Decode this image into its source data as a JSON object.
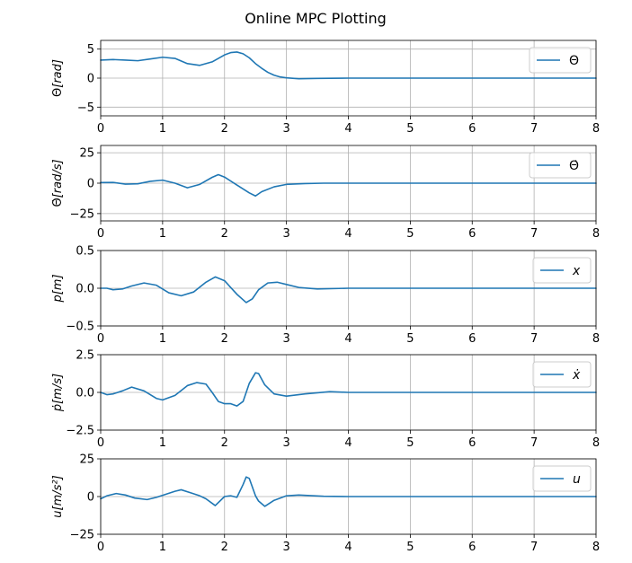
{
  "title": "Online MPC Plotting",
  "colors": {
    "series": "#1f77b4",
    "grid": "#b0b0b0"
  },
  "chart_data": [
    {
      "type": "line",
      "ylabel_prefix": "Θ",
      "ylabel_unit": "rad",
      "legend": "Θ",
      "legend_italic": false,
      "legend_position": "top-right",
      "xlim": [
        0,
        8
      ],
      "ylim": [
        -6.5,
        6.5
      ],
      "xticks": [
        0,
        1,
        2,
        3,
        4,
        5,
        6,
        7,
        8
      ],
      "yticks": [
        -5,
        0,
        5
      ],
      "grid": true,
      "series": [
        {
          "x": [
            0,
            0.2,
            0.4,
            0.6,
            0.8,
            1.0,
            1.2,
            1.4,
            1.6,
            1.8,
            2.0,
            2.1,
            2.2,
            2.3,
            2.4,
            2.5,
            2.6,
            2.7,
            2.8,
            2.9,
            3.0,
            3.2,
            3.5,
            4.0,
            8.0
          ],
          "y": [
            3.1,
            3.2,
            3.1,
            3.0,
            3.3,
            3.6,
            3.4,
            2.5,
            2.2,
            2.8,
            4.0,
            4.4,
            4.5,
            4.2,
            3.5,
            2.5,
            1.7,
            1.0,
            0.5,
            0.2,
            0.05,
            -0.1,
            -0.05,
            0.0,
            0.0
          ]
        }
      ]
    },
    {
      "type": "line",
      "ylabel_prefix": "Θ̇",
      "ylabel_unit": "rad/s",
      "legend": "Θ̇",
      "legend_italic": false,
      "legend_position": "top-right",
      "xlim": [
        0,
        8
      ],
      "ylim": [
        -31,
        31
      ],
      "xticks": [
        0,
        1,
        2,
        3,
        4,
        5,
        6,
        7,
        8
      ],
      "yticks": [
        -25,
        0,
        25
      ],
      "grid": true,
      "series": [
        {
          "x": [
            0,
            0.2,
            0.4,
            0.6,
            0.8,
            1.0,
            1.2,
            1.4,
            1.6,
            1.8,
            1.9,
            2.0,
            2.2,
            2.4,
            2.5,
            2.6,
            2.8,
            3.0,
            3.3,
            3.6,
            4.0,
            8.0
          ],
          "y": [
            0.5,
            0.6,
            -0.8,
            -0.5,
            1.5,
            2.5,
            0.0,
            -3.8,
            -1.0,
            4.8,
            7.0,
            5.0,
            -1.5,
            -8.0,
            -10.5,
            -7.0,
            -3.0,
            -1.0,
            -0.3,
            0.0,
            0.0,
            0.0
          ]
        }
      ]
    },
    {
      "type": "line",
      "ylabel_prefix": "p",
      "ylabel_unit": "m",
      "legend": "x",
      "legend_italic": true,
      "legend_position": "top-right",
      "xlim": [
        0,
        8
      ],
      "ylim": [
        -0.5,
        0.5
      ],
      "xticks": [
        0,
        1,
        2,
        3,
        4,
        5,
        6,
        7,
        8
      ],
      "yticks": [
        -0.5,
        0.0,
        0.5
      ],
      "ytick_labels": [
        "−0.5",
        "0.0",
        "0.5"
      ],
      "grid": true,
      "series": [
        {
          "x": [
            0,
            0.1,
            0.2,
            0.35,
            0.5,
            0.7,
            0.9,
            1.1,
            1.3,
            1.5,
            1.7,
            1.85,
            2.0,
            2.2,
            2.35,
            2.45,
            2.55,
            2.7,
            2.85,
            3.0,
            3.2,
            3.5,
            4.0,
            8.0
          ],
          "y": [
            0.0,
            0.0,
            -0.02,
            -0.01,
            0.03,
            0.07,
            0.04,
            -0.06,
            -0.1,
            -0.05,
            0.08,
            0.15,
            0.1,
            -0.08,
            -0.19,
            -0.14,
            -0.02,
            0.07,
            0.08,
            0.05,
            0.01,
            -0.01,
            0.0,
            0.0
          ]
        }
      ]
    },
    {
      "type": "line",
      "ylabel_prefix": "ṗ",
      "ylabel_unit": "m/s",
      "legend": "ẋ",
      "legend_italic": true,
      "legend_position": "top-right",
      "xlim": [
        0,
        8
      ],
      "ylim": [
        -2.5,
        2.5
      ],
      "xticks": [
        0,
        1,
        2,
        3,
        4,
        5,
        6,
        7,
        8
      ],
      "yticks": [
        -2.5,
        0.0,
        2.5
      ],
      "ytick_labels": [
        "−2.5",
        "0.0",
        "2.5"
      ],
      "grid": true,
      "series": [
        {
          "x": [
            0,
            0.1,
            0.2,
            0.35,
            0.5,
            0.7,
            0.9,
            1.0,
            1.2,
            1.4,
            1.55,
            1.7,
            1.8,
            1.9,
            2.0,
            2.1,
            2.2,
            2.3,
            2.4,
            2.5,
            2.55,
            2.65,
            2.8,
            3.0,
            3.3,
            3.7,
            4.0,
            8.0
          ],
          "y": [
            0.0,
            -0.15,
            -0.1,
            0.1,
            0.35,
            0.1,
            -0.4,
            -0.5,
            -0.2,
            0.45,
            0.65,
            0.55,
            0.0,
            -0.6,
            -0.75,
            -0.75,
            -0.9,
            -0.6,
            0.6,
            1.3,
            1.25,
            0.5,
            -0.1,
            -0.25,
            -0.1,
            0.05,
            0.0,
            0.0
          ]
        }
      ]
    },
    {
      "type": "line",
      "ylabel_prefix": "u",
      "ylabel_unit": "m/s²",
      "legend": "u",
      "legend_italic": true,
      "legend_position": "top-right",
      "xlim": [
        0,
        8
      ],
      "ylim": [
        -25,
        25
      ],
      "xticks": [
        0,
        1,
        2,
        3,
        4,
        5,
        6,
        7,
        8
      ],
      "yticks": [
        -25,
        0,
        25
      ],
      "grid": true,
      "series": [
        {
          "x": [
            0,
            0.1,
            0.25,
            0.4,
            0.55,
            0.75,
            0.9,
            1.05,
            1.2,
            1.3,
            1.45,
            1.6,
            1.7,
            1.85,
            2.0,
            2.1,
            2.2,
            2.3,
            2.35,
            2.4,
            2.5,
            2.55,
            2.65,
            2.8,
            3.0,
            3.2,
            3.6,
            4.0,
            8.0
          ],
          "y": [
            -1.5,
            0.5,
            2.0,
            1.0,
            -1.0,
            -2.0,
            -0.5,
            1.5,
            3.5,
            4.5,
            2.5,
            0.5,
            -1.5,
            -6.0,
            0.0,
            0.5,
            -0.5,
            8.0,
            13.0,
            12.0,
            0.5,
            -3.0,
            -6.5,
            -2.5,
            0.5,
            1.0,
            0.2,
            0.0,
            0.0
          ]
        }
      ]
    }
  ]
}
